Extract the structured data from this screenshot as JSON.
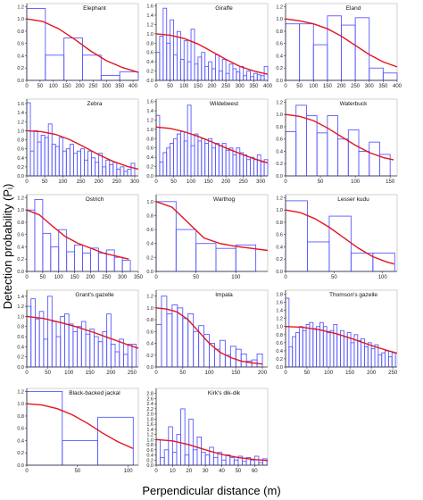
{
  "figure": {
    "ylabel": "Detection probability (Pᵢ)",
    "xlabel": "Perpendicular distance (m)",
    "colors": {
      "bars": "#5a5aff",
      "fit": "#e4141e",
      "axis": "#333333",
      "frame": "#bfbfbf"
    }
  },
  "chart_data": [
    {
      "type": "bar",
      "title": "Elephant",
      "xlim": [
        0,
        420
      ],
      "ylim": [
        0,
        1.25
      ],
      "xticks": [
        0,
        50,
        100,
        150,
        200,
        250,
        300,
        350,
        400
      ],
      "yticks": [
        0,
        0.2,
        0.4,
        0.6,
        0.8,
        1.0,
        1.2
      ],
      "bin_edges": [
        0,
        70,
        140,
        210,
        280,
        350,
        420
      ],
      "values": [
        1.17,
        0.41,
        0.69,
        0.41,
        0.08,
        0.14
      ],
      "fit": [
        [
          0,
          1.0
        ],
        [
          60,
          0.96
        ],
        [
          120,
          0.84
        ],
        [
          180,
          0.67
        ],
        [
          240,
          0.48
        ],
        [
          300,
          0.32
        ],
        [
          360,
          0.21
        ],
        [
          420,
          0.13
        ]
      ]
    },
    {
      "type": "bar",
      "title": "Giraffe",
      "xlim": [
        0,
        400
      ],
      "ylim": [
        0,
        1.65
      ],
      "xticks": [
        0,
        50,
        100,
        150,
        200,
        250,
        300,
        350,
        400
      ],
      "yticks": [
        0,
        0.2,
        0.4,
        0.6,
        0.8,
        1.0,
        1.2,
        1.4,
        1.6
      ],
      "bin_edges": [
        0,
        12.5,
        25,
        37.5,
        50,
        62.5,
        75,
        87.5,
        100,
        112.5,
        125,
        137.5,
        150,
        162.5,
        175,
        187.5,
        200,
        212.5,
        225,
        237.5,
        250,
        262.5,
        275,
        287.5,
        300,
        312.5,
        325,
        337.5,
        350,
        362.5,
        375,
        387.5,
        400
      ],
      "values": [
        0.6,
        0.95,
        1.55,
        0.8,
        1.3,
        0.55,
        1.05,
        0.45,
        0.85,
        0.4,
        1.1,
        0.35,
        0.5,
        0.6,
        0.3,
        0.4,
        0.25,
        0.55,
        0.2,
        0.45,
        0.15,
        0.35,
        0.25,
        0.18,
        0.3,
        0.1,
        0.2,
        0.08,
        0.15,
        0.12,
        0.1,
        0.3
      ],
      "fit": [
        [
          0,
          1.0
        ],
        [
          50,
          0.97
        ],
        [
          100,
          0.9
        ],
        [
          150,
          0.78
        ],
        [
          200,
          0.62
        ],
        [
          250,
          0.45
        ],
        [
          300,
          0.3
        ],
        [
          350,
          0.2
        ],
        [
          400,
          0.13
        ]
      ]
    },
    {
      "type": "bar",
      "title": "Eland",
      "xlim": [
        0,
        400
      ],
      "ylim": [
        0,
        1.25
      ],
      "xticks": [
        0,
        50,
        100,
        150,
        200,
        250,
        300,
        350,
        400
      ],
      "yticks": [
        0,
        0.2,
        0.4,
        0.6,
        0.8,
        1.0,
        1.2
      ],
      "bin_edges": [
        0,
        50,
        100,
        150,
        200,
        250,
        300,
        350,
        400
      ],
      "values": [
        0.92,
        0.92,
        0.58,
        1.05,
        0.9,
        1.02,
        0.2,
        0.12
      ],
      "fit": [
        [
          0,
          1.0
        ],
        [
          50,
          0.97
        ],
        [
          100,
          0.92
        ],
        [
          150,
          0.84
        ],
        [
          200,
          0.72
        ],
        [
          250,
          0.57
        ],
        [
          300,
          0.42
        ],
        [
          350,
          0.3
        ],
        [
          400,
          0.22
        ]
      ]
    },
    {
      "type": "bar",
      "title": "Zebra",
      "xlim": [
        0,
        310
      ],
      "ylim": [
        0,
        1.7
      ],
      "xticks": [
        0,
        50,
        100,
        150,
        200,
        250,
        300
      ],
      "yticks": [
        0,
        0.2,
        0.4,
        0.6,
        0.8,
        1.0,
        1.2,
        1.4,
        1.6
      ],
      "bin_edges": [
        0,
        10,
        20,
        30,
        40,
        50,
        60,
        70,
        80,
        90,
        100,
        110,
        120,
        130,
        140,
        150,
        160,
        170,
        180,
        190,
        200,
        210,
        220,
        230,
        240,
        250,
        260,
        270,
        280,
        290,
        300
      ],
      "values": [
        1.62,
        0.55,
        1.0,
        0.75,
        0.9,
        0.85,
        1.15,
        0.7,
        0.65,
        0.85,
        0.55,
        0.6,
        0.7,
        0.5,
        0.55,
        0.6,
        0.35,
        0.55,
        0.4,
        0.3,
        0.5,
        0.2,
        0.35,
        0.25,
        0.3,
        0.15,
        0.2,
        0.1,
        0.15,
        0.28
      ],
      "fit": [
        [
          0,
          1.0
        ],
        [
          40,
          0.98
        ],
        [
          80,
          0.92
        ],
        [
          120,
          0.8
        ],
        [
          160,
          0.64
        ],
        [
          200,
          0.47
        ],
        [
          240,
          0.32
        ],
        [
          280,
          0.21
        ],
        [
          310,
          0.15
        ]
      ]
    },
    {
      "type": "bar",
      "title": "Wildebeest",
      "xlim": [
        0,
        320
      ],
      "ylim": [
        0,
        1.65
      ],
      "xticks": [
        0,
        50,
        100,
        150,
        200,
        250,
        300
      ],
      "yticks": [
        0,
        0.2,
        0.4,
        0.6,
        0.8,
        1.0,
        1.2,
        1.4,
        1.6
      ],
      "bin_edges": [
        0,
        10,
        20,
        30,
        40,
        50,
        60,
        70,
        80,
        90,
        100,
        110,
        120,
        130,
        140,
        150,
        160,
        170,
        180,
        190,
        200,
        210,
        220,
        230,
        240,
        250,
        260,
        270,
        280,
        290,
        300,
        310,
        320
      ],
      "values": [
        1.3,
        0.3,
        0.5,
        0.6,
        0.7,
        0.8,
        0.9,
        0.95,
        0.75,
        1.52,
        0.65,
        0.9,
        0.75,
        0.8,
        0.7,
        0.8,
        0.6,
        0.7,
        0.65,
        0.7,
        0.55,
        0.6,
        0.45,
        0.6,
        0.5,
        0.45,
        0.35,
        0.4,
        0.35,
        0.45,
        0.3,
        0.35
      ],
      "fit": [
        [
          0,
          1.05
        ],
        [
          40,
          1.02
        ],
        [
          80,
          0.95
        ],
        [
          120,
          0.85
        ],
        [
          160,
          0.73
        ],
        [
          200,
          0.6
        ],
        [
          240,
          0.48
        ],
        [
          280,
          0.37
        ],
        [
          320,
          0.28
        ]
      ]
    },
    {
      "type": "bar",
      "title": "Waterbuck",
      "xlim": [
        0,
        160
      ],
      "ylim": [
        0,
        1.25
      ],
      "xticks": [
        0,
        50,
        100,
        150
      ],
      "yticks": [
        0,
        0.2,
        0.4,
        0.6,
        0.8,
        1.0,
        1.2
      ],
      "bin_edges": [
        0,
        15,
        30,
        45,
        60,
        75,
        90,
        105,
        120,
        135,
        150
      ],
      "values": [
        0.72,
        1.15,
        0.98,
        0.7,
        0.98,
        0.6,
        0.75,
        0.4,
        0.55,
        0.35
      ],
      "fit": [
        [
          0,
          1.0
        ],
        [
          20,
          0.97
        ],
        [
          40,
          0.9
        ],
        [
          60,
          0.78
        ],
        [
          80,
          0.64
        ],
        [
          100,
          0.5
        ],
        [
          120,
          0.38
        ],
        [
          140,
          0.3
        ],
        [
          155,
          0.26
        ]
      ]
    },
    {
      "type": "bar",
      "title": "Ostrich",
      "xlim": [
        0,
        350
      ],
      "ylim": [
        0,
        1.25
      ],
      "xticks": [
        0,
        50,
        100,
        150,
        200,
        250,
        300,
        350
      ],
      "yticks": [
        0,
        0.2,
        0.4,
        0.6,
        0.8,
        1.0,
        1.2
      ],
      "bin_edges": [
        0,
        25,
        50,
        75,
        100,
        125,
        150,
        175,
        200,
        225,
        250,
        275,
        300,
        325
      ],
      "values": [
        1.0,
        1.17,
        0.62,
        0.4,
        0.68,
        0.32,
        0.43,
        0.3,
        0.38,
        0.3,
        0.35,
        0.23,
        0.18
      ],
      "fit": [
        [
          0,
          1.0
        ],
        [
          40,
          0.92
        ],
        [
          80,
          0.74
        ],
        [
          120,
          0.57
        ],
        [
          160,
          0.46
        ],
        [
          200,
          0.38
        ],
        [
          240,
          0.3
        ],
        [
          280,
          0.25
        ],
        [
          320,
          0.2
        ]
      ]
    },
    {
      "type": "bar",
      "title": "Warthog",
      "xlim": [
        0,
        140
      ],
      "ylim": [
        0,
        1.1
      ],
      "xticks": [
        0,
        50,
        100
      ],
      "yticks": [
        0,
        0.2,
        0.4,
        0.6,
        0.8,
        1.0
      ],
      "bin_edges": [
        0,
        25,
        50,
        75,
        100,
        125
      ],
      "values": [
        1.0,
        0.6,
        0.4,
        0.33,
        0.38
      ],
      "fit": [
        [
          0,
          1.0
        ],
        [
          20,
          0.92
        ],
        [
          40,
          0.7
        ],
        [
          60,
          0.48
        ],
        [
          80,
          0.4
        ],
        [
          100,
          0.36
        ],
        [
          120,
          0.33
        ],
        [
          140,
          0.3
        ]
      ]
    },
    {
      "type": "bar",
      "title": "Lesser kudu",
      "xlim": [
        0,
        115
      ],
      "ylim": [
        0,
        1.25
      ],
      "xticks": [
        0,
        50,
        100
      ],
      "yticks": [
        0,
        0.2,
        0.4,
        0.6,
        0.8,
        1.0,
        1.2
      ],
      "bin_edges": [
        0,
        22.5,
        45,
        67.5,
        90,
        112.5
      ],
      "values": [
        1.15,
        0.48,
        0.9,
        0.3,
        0.3
      ],
      "fit": [
        [
          0,
          1.0
        ],
        [
          15,
          0.96
        ],
        [
          30,
          0.86
        ],
        [
          45,
          0.72
        ],
        [
          60,
          0.55
        ],
        [
          75,
          0.38
        ],
        [
          90,
          0.24
        ],
        [
          105,
          0.15
        ],
        [
          112,
          0.12
        ]
      ]
    },
    {
      "type": "bar",
      "title": "Grant's gazelle",
      "xlim": [
        0,
        265
      ],
      "ylim": [
        0,
        1.52
      ],
      "xticks": [
        0,
        50,
        100,
        150,
        200,
        250
      ],
      "yticks": [
        0,
        0.2,
        0.4,
        0.6,
        0.8,
        1.0,
        1.2,
        1.4
      ],
      "bin_edges": [
        0,
        10,
        20,
        30,
        40,
        50,
        60,
        70,
        80,
        90,
        100,
        110,
        120,
        130,
        140,
        150,
        160,
        170,
        180,
        190,
        200,
        210,
        220,
        230,
        240,
        250,
        260
      ],
      "values": [
        1.2,
        1.35,
        0.95,
        1.1,
        0.55,
        1.4,
        0.9,
        0.6,
        1.0,
        1.05,
        0.85,
        0.7,
        0.8,
        0.9,
        0.65,
        0.75,
        0.6,
        0.5,
        0.7,
        1.05,
        0.45,
        0.3,
        0.55,
        0.25,
        0.45,
        0.45
      ],
      "fit": [
        [
          0,
          1.0
        ],
        [
          40,
          0.96
        ],
        [
          80,
          0.88
        ],
        [
          120,
          0.79
        ],
        [
          160,
          0.68
        ],
        [
          200,
          0.56
        ],
        [
          240,
          0.44
        ],
        [
          265,
          0.37
        ]
      ]
    },
    {
      "type": "bar",
      "title": "Impala",
      "xlim": [
        0,
        210
      ],
      "ylim": [
        0,
        1.3
      ],
      "xticks": [
        0,
        50,
        100,
        150,
        200
      ],
      "yticks": [
        0,
        0.2,
        0.4,
        0.6,
        0.8,
        1.0,
        1.2
      ],
      "bin_edges": [
        0,
        10,
        20,
        30,
        40,
        50,
        60,
        70,
        80,
        90,
        100,
        110,
        120,
        130,
        140,
        150,
        160,
        170,
        180,
        190,
        200
      ],
      "values": [
        0.72,
        1.2,
        0.9,
        1.05,
        1.0,
        0.82,
        0.9,
        0.6,
        0.7,
        0.55,
        0.4,
        0.3,
        0.45,
        0.2,
        0.35,
        0.3,
        0.22,
        0.1,
        0.12,
        0.22
      ],
      "fit": [
        [
          0,
          1.0
        ],
        [
          20,
          0.98
        ],
        [
          40,
          0.93
        ],
        [
          60,
          0.8
        ],
        [
          80,
          0.6
        ],
        [
          100,
          0.4
        ],
        [
          120,
          0.25
        ],
        [
          140,
          0.16
        ],
        [
          160,
          0.1
        ],
        [
          180,
          0.07
        ],
        [
          200,
          0.05
        ]
      ]
    },
    {
      "type": "bar",
      "title": "Thomson's gazelle",
      "xlim": [
        0,
        260
      ],
      "ylim": [
        0,
        1.9
      ],
      "xticks": [
        0,
        50,
        100,
        150,
        200,
        250
      ],
      "yticks": [
        0,
        0.2,
        0.4,
        0.6,
        0.8,
        1.0,
        1.2,
        1.4,
        1.6,
        1.8
      ],
      "bin_edges": [
        0,
        8,
        16,
        24,
        32,
        40,
        48,
        56,
        64,
        72,
        80,
        88,
        96,
        104,
        112,
        120,
        128,
        136,
        144,
        152,
        160,
        168,
        176,
        184,
        192,
        200,
        208,
        216,
        224,
        232,
        240,
        248,
        256
      ],
      "values": [
        1.7,
        0.5,
        0.75,
        0.85,
        1.0,
        0.9,
        1.05,
        1.1,
        0.95,
        1.0,
        1.1,
        1.0,
        0.85,
        0.9,
        1.05,
        0.8,
        0.9,
        0.75,
        0.85,
        0.6,
        0.8,
        0.65,
        0.7,
        0.5,
        0.6,
        0.45,
        0.55,
        0.3,
        0.35,
        0.4,
        0.25,
        0.35
      ],
      "fit": [
        [
          0,
          1.0
        ],
        [
          40,
          0.98
        ],
        [
          80,
          0.92
        ],
        [
          120,
          0.82
        ],
        [
          160,
          0.68
        ],
        [
          200,
          0.53
        ],
        [
          240,
          0.4
        ],
        [
          260,
          0.34
        ]
      ]
    },
    {
      "type": "bar",
      "title": "Black-backed jackal",
      "xlim": [
        0,
        110
      ],
      "ylim": [
        0,
        1.25
      ],
      "xticks": [
        0,
        50,
        100
      ],
      "yticks": [
        0,
        0.2,
        0.4,
        0.6,
        0.8,
        1.0,
        1.2
      ],
      "bin_edges": [
        0,
        35,
        70,
        105
      ],
      "values": [
        1.2,
        0.4,
        0.78
      ],
      "fit": [
        [
          0,
          1.0
        ],
        [
          15,
          0.98
        ],
        [
          30,
          0.92
        ],
        [
          45,
          0.82
        ],
        [
          60,
          0.68
        ],
        [
          75,
          0.52
        ],
        [
          90,
          0.38
        ],
        [
          105,
          0.27
        ]
      ]
    },
    {
      "type": "bar",
      "title": "Kirk's dik-dik",
      "xlim": [
        0,
        68
      ],
      "ylim": [
        0,
        3.0
      ],
      "xticks": [
        0,
        10,
        20,
        30,
        40,
        50,
        60
      ],
      "yticks": [
        0,
        0.2,
        0.4,
        0.6,
        0.8,
        1.0,
        1.2,
        1.4,
        1.6,
        1.8,
        2.0,
        2.2,
        2.4,
        2.6,
        2.8
      ],
      "bin_edges": [
        0,
        2.5,
        5,
        7.5,
        10,
        12.5,
        15,
        17.5,
        20,
        22.5,
        25,
        27.5,
        30,
        32.5,
        35,
        37.5,
        40,
        42.5,
        45,
        47.5,
        50,
        52.5,
        55,
        57.5,
        60,
        62.5,
        65,
        67.5
      ],
      "values": [
        1.0,
        0.3,
        0.6,
        1.5,
        0.5,
        1.2,
        2.2,
        0.4,
        1.8,
        0.6,
        1.1,
        0.5,
        0.4,
        0.7,
        0.3,
        0.5,
        0.2,
        0.4,
        0.3,
        0.2,
        0.35,
        0.15,
        0.3,
        0.2,
        0.35,
        0.1,
        0.25
      ],
      "fit": [
        [
          0,
          1.0
        ],
        [
          10,
          0.95
        ],
        [
          20,
          0.8
        ],
        [
          30,
          0.6
        ],
        [
          40,
          0.42
        ],
        [
          50,
          0.3
        ],
        [
          60,
          0.22
        ],
        [
          68,
          0.18
        ]
      ]
    }
  ]
}
